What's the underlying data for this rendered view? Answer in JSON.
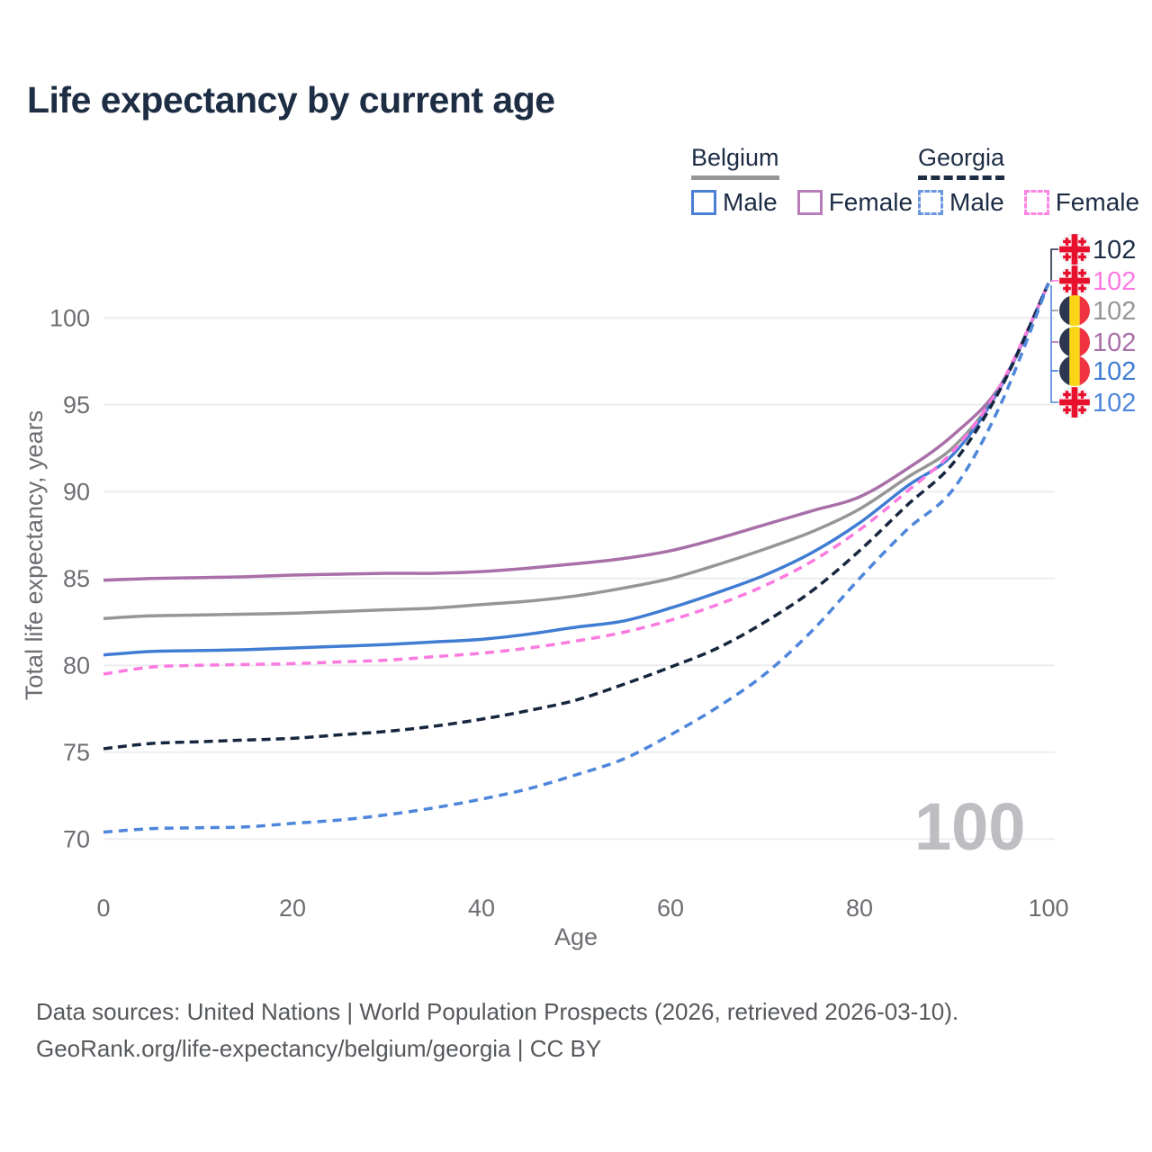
{
  "title": "Life expectancy by current age",
  "legend": {
    "groups": [
      {
        "label": "Belgium",
        "line_style": "solid",
        "underline_color": "#969696",
        "items": [
          {
            "label": "Male",
            "color": "#4a7fd4",
            "dashed": false
          },
          {
            "label": "Female",
            "color": "#b87cb8",
            "dashed": false
          }
        ]
      },
      {
        "label": "Georgia",
        "line_style": "dashed",
        "underline_color": "#1d2d44",
        "items": [
          {
            "label": "Male",
            "color": "#6b97e0",
            "dashed": true
          },
          {
            "label": "Female",
            "color": "#fc85e3",
            "dashed": true
          }
        ]
      }
    ]
  },
  "chart_data": {
    "type": "line",
    "title": "Life expectancy by current age",
    "xlabel": "Age",
    "ylabel": "Total life expectancy, years",
    "xlim": [
      0,
      100
    ],
    "ylim": [
      70,
      102
    ],
    "xticks": [
      0,
      20,
      40,
      60,
      80,
      100
    ],
    "yticks": [
      70,
      75,
      80,
      85,
      90,
      95,
      100
    ],
    "grid": "horizontal",
    "legend_position": "top-right",
    "x": [
      0,
      5,
      10,
      15,
      20,
      25,
      30,
      35,
      40,
      45,
      50,
      55,
      60,
      65,
      70,
      75,
      80,
      85,
      90,
      95,
      100
    ],
    "series": [
      {
        "name": "Belgium Female",
        "country": "Belgium",
        "sex": "Female",
        "color": "#a86fa8",
        "dash": null,
        "values": [
          84.9,
          85.0,
          85.05,
          85.1,
          85.2,
          85.25,
          85.3,
          85.3,
          85.4,
          85.6,
          85.85,
          86.15,
          86.6,
          87.3,
          88.1,
          88.9,
          89.7,
          91.3,
          93.3,
          96.2,
          102
        ]
      },
      {
        "name": "Belgium Both sexes",
        "country": "Belgium",
        "sex": "Both",
        "color": "#969696",
        "dash": null,
        "values": [
          82.7,
          82.85,
          82.9,
          82.95,
          83.0,
          83.1,
          83.2,
          83.3,
          83.5,
          83.7,
          84.0,
          84.45,
          85.0,
          85.8,
          86.7,
          87.7,
          89.0,
          90.8,
          92.6,
          96.1,
          102
        ]
      },
      {
        "name": "Belgium Male",
        "country": "Belgium",
        "sex": "Male",
        "color": "#3f7cd2",
        "dash": null,
        "values": [
          80.6,
          80.8,
          80.85,
          80.9,
          81.0,
          81.1,
          81.2,
          81.35,
          81.5,
          81.8,
          82.2,
          82.55,
          83.3,
          84.2,
          85.2,
          86.5,
          88.2,
          90.3,
          92.2,
          96.1,
          102
        ]
      },
      {
        "name": "Georgia Female",
        "country": "Georgia",
        "sex": "Female",
        "color": "#fb7ae0",
        "dash": "10 7",
        "values": [
          79.5,
          79.9,
          80.0,
          80.05,
          80.1,
          80.2,
          80.3,
          80.5,
          80.7,
          81.0,
          81.4,
          81.9,
          82.6,
          83.5,
          84.6,
          86.0,
          87.8,
          90.0,
          92.4,
          96.2,
          102
        ]
      },
      {
        "name": "Georgia Both sexes",
        "country": "Georgia",
        "sex": "Both",
        "color": "#17263f",
        "dash": "10 6",
        "values": [
          75.2,
          75.5,
          75.6,
          75.7,
          75.8,
          76.0,
          76.2,
          76.5,
          76.9,
          77.4,
          78.0,
          78.9,
          79.9,
          81.0,
          82.5,
          84.3,
          86.6,
          89.2,
          91.7,
          96.0,
          102
        ]
      },
      {
        "name": "Georgia Male",
        "country": "Georgia",
        "sex": "Male",
        "color": "#4e86db",
        "dash": "10 7",
        "values": [
          70.4,
          70.6,
          70.65,
          70.7,
          70.9,
          71.1,
          71.4,
          71.8,
          72.3,
          72.9,
          73.7,
          74.6,
          76.0,
          77.6,
          79.5,
          82.0,
          85.0,
          87.8,
          90.2,
          95.1,
          102
        ]
      }
    ],
    "end_labels": [
      {
        "label": "102",
        "flag": "georgia",
        "color": "#1d2d44",
        "series": "Georgia Both sexes"
      },
      {
        "label": "102",
        "flag": "georgia",
        "color": "#fb7ae0",
        "series": "Georgia Female"
      },
      {
        "label": "102",
        "flag": "belgium",
        "color": "#969696",
        "series": "Belgium Both sexes"
      },
      {
        "label": "102",
        "flag": "belgium",
        "color": "#a86fa8",
        "series": "Belgium Female"
      },
      {
        "label": "102",
        "flag": "belgium",
        "color": "#3f7cd2",
        "series": "Belgium Male"
      },
      {
        "label": "102",
        "flag": "georgia",
        "color": "#4e86db",
        "series": "Georgia Male"
      }
    ]
  },
  "watermark": "100",
  "footer": {
    "line1": "Data sources: United Nations | World Population Prospects (2026, retrieved 2026-03-10).",
    "line2": "GeoRank.org/life-expectancy/belgium/georgia | CC BY"
  },
  "colors": {
    "title_text": "#1d2d44",
    "axis_text": "#6d6d73",
    "gridline": "#ededf0",
    "watermark": "#bdbdc2",
    "footer_text": "#55585c",
    "georgia_flag_red": "#e8112d",
    "belgium_flag_black": "#2d3750",
    "belgium_flag_yellow": "#f9d616",
    "belgium_flag_red": "#ef3340"
  }
}
